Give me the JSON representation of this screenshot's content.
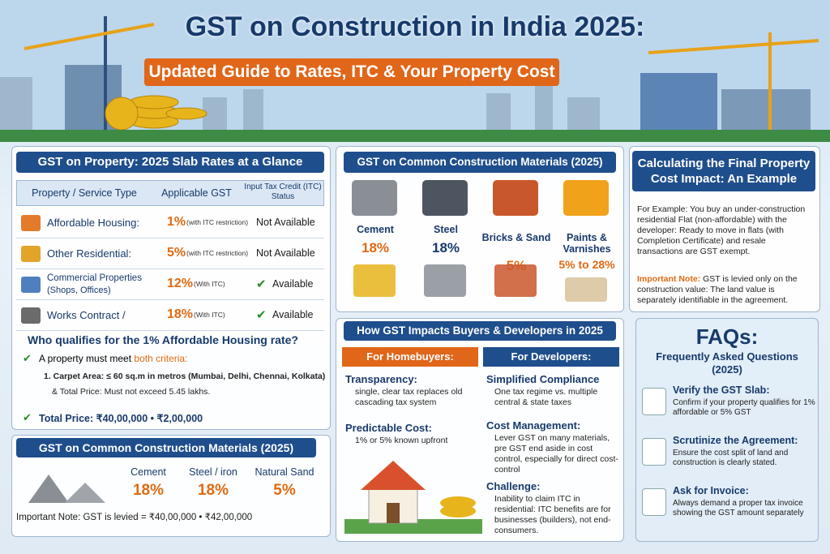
{
  "header": {
    "title": "GST on Construction in India 2025:",
    "subtitle": "Updated Guide to Rates, ITC & Your Property Cost"
  },
  "slab": {
    "title": "GST on Property: 2025 Slab Rates at a Glance",
    "columns": [
      "Property / Service Type",
      "Applicable GST",
      "Input Tax Credit (ITC) Status"
    ],
    "rows": [
      {
        "type": "Affordable Housing:",
        "rate": "1%",
        "note": "(with ITC restriction)",
        "itc": "Not Available"
      },
      {
        "type": "Other Residential:",
        "rate": "5%",
        "note": "(with ITC restriction)",
        "itc": "Not Available"
      },
      {
        "type": "Commercial Properties",
        "sub": "(Shops, Offices)",
        "rate": "12%",
        "note": "(With ITC)",
        "itc": "Available"
      },
      {
        "type": "Works Contract /",
        "rate": "18%",
        "note": "(With ITC)",
        "itc": "Available"
      }
    ]
  },
  "qualify": {
    "question": "Who qualifies for the 1% Affordable Housing rate?",
    "intro": "A property must meet",
    "emphasis": "both criteria:",
    "item1": "1. Carpet Area: ≤ 60 sq.m in metros (Mumbai, Delhi, Chennai, Kolkata)",
    "item2": "& Total Price: Must not exceed 5.45 lakhs.",
    "total": "Total Price: ₹40,00,000 • ₹2,00,000"
  },
  "materials_bottom": {
    "title": "GST on Common Construction Materials (2025)",
    "items": [
      {
        "name": "Cement",
        "rate": "18%"
      },
      {
        "name": "Steel / iron",
        "rate": "18%"
      },
      {
        "name": "Natural Sand",
        "rate": "5%"
      }
    ],
    "note": "Important Note: GST is levied = ₹40,00,000 • ₹42,00,000"
  },
  "materials_top": {
    "title": "GST on Common Construction Materials (2025)",
    "items": [
      {
        "name": "Cement",
        "rate": "18%"
      },
      {
        "name": "Steel",
        "rate": "18%"
      },
      {
        "name": "Bricks & Sand",
        "rate": "5%"
      },
      {
        "name": "Paints & Varnishes",
        "rate": "5% to 28%"
      }
    ]
  },
  "example": {
    "title": "Calculating the Final Property Cost Impact: An Example",
    "body": "For Example: You buy an under-construction residential Flat (non-affordable) with the developer: Ready to move in flats (with Completion Certificate) and resale transactions are GST exempt.",
    "note_label": "Important Note:",
    "note": "GST is levied only on the construction value: The land value is separately identifiable in the agreement."
  },
  "impacts": {
    "title": "How GST Impacts Buyers & Developers in 2025",
    "homebuyers": {
      "heading": "For Homebuyers:",
      "items": [
        {
          "title": "Transparency:",
          "text": "single, clear tax replaces old cascading tax system"
        },
        {
          "title": "Predictable Cost:",
          "text": "1% or 5% known upfront"
        }
      ]
    },
    "developers": {
      "heading": "For Developers:",
      "items": [
        {
          "title": "Simplified Compliance",
          "text": "One tax regime vs. multiple central & state taxes"
        },
        {
          "title": "Cost Management:",
          "text": "Lever GST on many materials, pre GST end aside in cost control, especially for direct cost-control"
        },
        {
          "title": "Challenge:",
          "text": "Inability to claim ITC in residential: ITC benefits are for businesses (builders), not end-consumers."
        }
      ]
    }
  },
  "faq": {
    "title": "FAQs:",
    "subtitle": "Frequently Asked Questions (2025)",
    "items": [
      {
        "title": "Verify the GST Slab:",
        "text": "Confirm if your property qualifies for 1% affordable or 5% GST"
      },
      {
        "title": "Scrutinize the Agreement:",
        "text": "Ensure the cost split of land and construction is clearly stated."
      },
      {
        "title": "Ask for Invoice:",
        "text": "Always demand a proper tax invoice showing the GST amount separately"
      }
    ]
  }
}
